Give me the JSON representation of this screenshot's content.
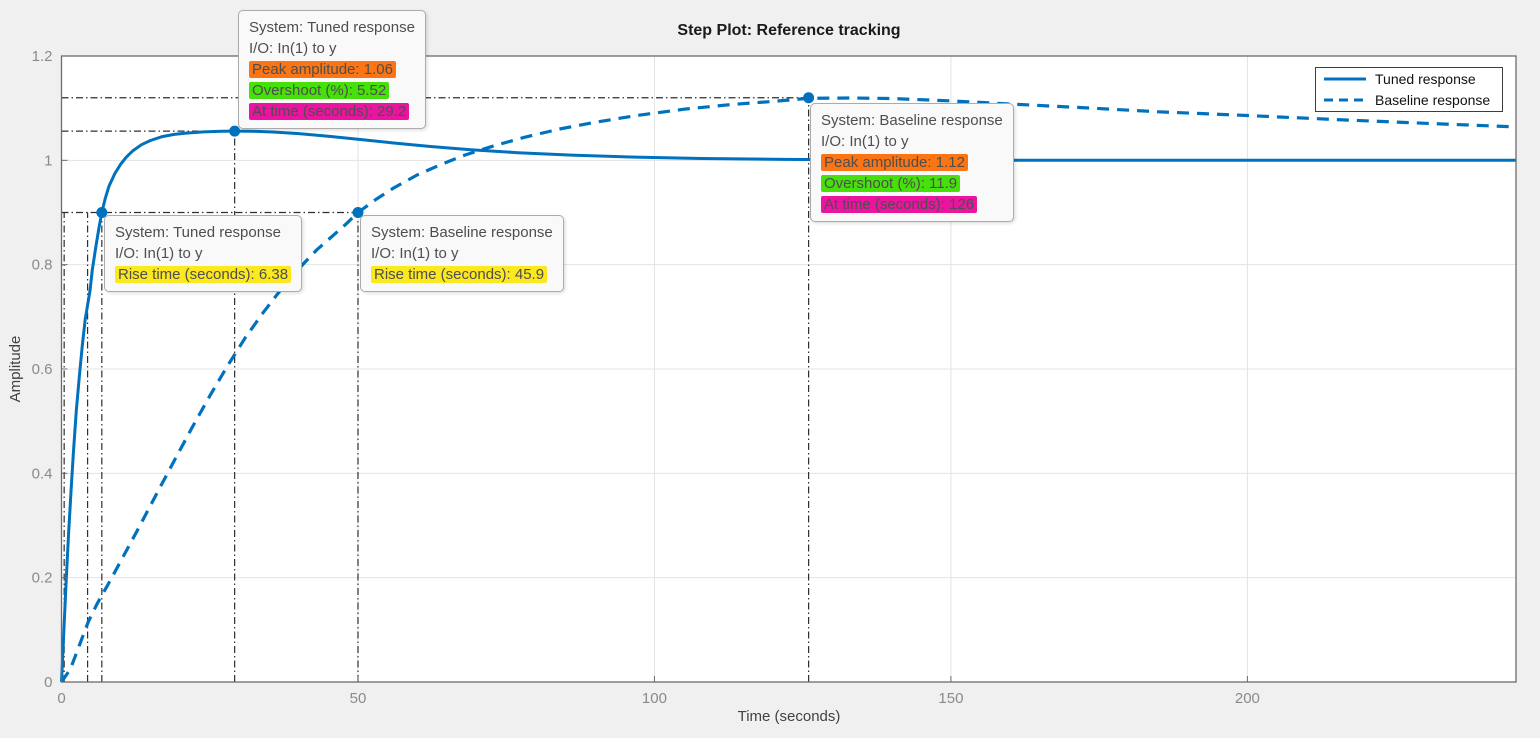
{
  "figure": {
    "background": "#f0f0f0",
    "plot_background": "#ffffff",
    "axis_color": "#6b6b6b",
    "grid_color": "#e3e3e3",
    "tick_label_color": "#8a8a8a",
    "label_color": "#424242",
    "title_color": "#1a1a1a",
    "guide_color": "#2f2f2f",
    "accent": "#0072BD"
  },
  "legend": {
    "items": [
      {
        "label": "Tuned response",
        "line": "solid"
      },
      {
        "label": "Baseline response",
        "line": "dashed"
      }
    ]
  },
  "tooltips": [
    {
      "name": "tuned-peak-datatip",
      "lines": [
        "System: Tuned response",
        "I/O: In(1) to y"
      ],
      "rows": [
        {
          "label": "Peak amplitude: 1.06",
          "highlight": "#fb7514"
        },
        {
          "label": "Overshoot (%): 5.52",
          "highlight": "#46e00a"
        },
        {
          "label": "At time (seconds): 29.2",
          "highlight": "#ea14a0"
        }
      ]
    },
    {
      "name": "tuned-rise-datatip",
      "lines": [
        "System: Tuned response",
        "I/O: In(1) to y"
      ],
      "rows": [
        {
          "label": "Rise time (seconds): 6.38",
          "highlight": "#fbe81f"
        }
      ]
    },
    {
      "name": "baseline-rise-datatip",
      "lines": [
        "System: Baseline response",
        "I/O: In(1) to y"
      ],
      "rows": [
        {
          "label": "Rise time (seconds): 45.9",
          "highlight": "#fbe81f"
        }
      ]
    },
    {
      "name": "baseline-peak-datatip",
      "lines": [
        "System: Baseline response",
        "I/O: In(1) to y"
      ],
      "rows": [
        {
          "label": "Peak amplitude: 1.12",
          "highlight": "#fb7514"
        },
        {
          "label": "Overshoot (%): 11.9",
          "highlight": "#46e00a"
        },
        {
          "label": "At time (seconds): 126",
          "highlight": "#ea14a0"
        }
      ]
    }
  ],
  "chart_data": {
    "type": "line",
    "title": "Step Plot: Reference tracking",
    "xlabel": "Time (seconds)",
    "ylabel": "Amplitude",
    "xlim": [
      0,
      245.3
    ],
    "ylim": [
      0,
      1.2
    ],
    "x_ticks": [
      0,
      50,
      100,
      150,
      200
    ],
    "y_ticks": [
      0,
      0.2,
      0.4,
      0.6,
      0.8,
      1,
      1.2
    ],
    "grid": true,
    "legend_position": "northeast",
    "series": [
      {
        "name": "Tuned response",
        "style": "solid",
        "color": "#0072BD",
        "points": [
          [
            0,
            0
          ],
          [
            0.4,
            0.1
          ],
          [
            0.8,
            0.195
          ],
          [
            1.2,
            0.285
          ],
          [
            1.6,
            0.365
          ],
          [
            2,
            0.44
          ],
          [
            2.5,
            0.52
          ],
          [
            3,
            0.585
          ],
          [
            3.5,
            0.645
          ],
          [
            4,
            0.695
          ],
          [
            4.8,
            0.75
          ],
          [
            5.2,
            0.79
          ],
          [
            5.8,
            0.835
          ],
          [
            6.3,
            0.87
          ],
          [
            6.8,
            0.9
          ],
          [
            7.4,
            0.928
          ],
          [
            8,
            0.95
          ],
          [
            9,
            0.975
          ],
          [
            10,
            0.993
          ],
          [
            11,
            1.007
          ],
          [
            12,
            1.018
          ],
          [
            13.5,
            1.03
          ],
          [
            15,
            1.038
          ],
          [
            17,
            1.0455
          ],
          [
            19,
            1.0497
          ],
          [
            21,
            1.0522
          ],
          [
            24,
            1.0545
          ],
          [
            27,
            1.0557
          ],
          [
            29.2,
            1.056
          ],
          [
            32,
            1.0558
          ],
          [
            36,
            1.0542
          ],
          [
            40,
            1.0512
          ],
          [
            45,
            1.0462
          ],
          [
            50,
            1.0405
          ],
          [
            56,
            1.0333
          ],
          [
            62,
            1.0268
          ],
          [
            69,
            1.0204
          ],
          [
            77,
            1.0147
          ],
          [
            86,
            1.01
          ],
          [
            96,
            1.0064
          ],
          [
            108,
            1.0036
          ],
          [
            122,
            1.0017
          ],
          [
            138,
            1.0006
          ],
          [
            155,
            1.0001
          ],
          [
            175,
            1
          ],
          [
            200,
            1
          ],
          [
            222,
            1
          ],
          [
            245.3,
            1
          ]
        ]
      },
      {
        "name": "Baseline response",
        "style": "dashed",
        "color": "#0072BD",
        "points": [
          [
            0,
            0
          ],
          [
            1.5,
            0.025
          ],
          [
            3,
            0.07
          ],
          [
            4.5,
            0.115
          ],
          [
            6,
            0.15
          ],
          [
            8,
            0.19
          ],
          [
            10,
            0.232
          ],
          [
            13,
            0.295
          ],
          [
            16,
            0.36
          ],
          [
            19,
            0.424
          ],
          [
            22,
            0.487
          ],
          [
            25,
            0.548
          ],
          [
            28,
            0.606
          ],
          [
            31,
            0.66
          ],
          [
            34,
            0.708
          ],
          [
            37,
            0.752
          ],
          [
            40,
            0.792
          ],
          [
            43,
            0.828
          ],
          [
            46,
            0.858
          ],
          [
            48,
            0.878
          ],
          [
            50,
            0.9
          ],
          [
            53,
            0.925
          ],
          [
            56,
            0.947
          ],
          [
            60,
            0.972
          ],
          [
            64,
            0.992
          ],
          [
            68,
            1.01
          ],
          [
            73,
            1.028
          ],
          [
            78,
            1.044
          ],
          [
            84,
            1.06
          ],
          [
            90,
            1.073
          ],
          [
            97,
            1.086
          ],
          [
            105,
            1.098
          ],
          [
            113,
            1.107
          ],
          [
            120,
            1.113
          ],
          [
            126,
            1.119
          ],
          [
            133,
            1.1195
          ],
          [
            140,
            1.1185
          ],
          [
            150,
            1.114
          ],
          [
            160,
            1.108
          ],
          [
            172,
            1.101
          ],
          [
            185,
            1.093
          ],
          [
            200,
            1.086
          ],
          [
            215,
            1.078
          ],
          [
            230,
            1.071
          ],
          [
            245.3,
            1.064
          ]
        ]
      }
    ],
    "characteristics": [
      {
        "system": "Tuned response",
        "metric": "Rise time (seconds)",
        "value": 6.38
      },
      {
        "system": "Tuned response",
        "metric": "Peak amplitude",
        "value": 1.06,
        "overshoot_pct": 5.52,
        "at_time_seconds": 29.2
      },
      {
        "system": "Baseline response",
        "metric": "Rise time (seconds)",
        "value": 45.9
      },
      {
        "system": "Baseline response",
        "metric": "Peak amplitude",
        "value": 1.12,
        "overshoot_pct": 11.9,
        "at_time_seconds": 126
      }
    ],
    "marker_points": [
      [
        6.8,
        0.9
      ],
      [
        29.2,
        1.056
      ],
      [
        50,
        0.9
      ],
      [
        126,
        1.12
      ]
    ],
    "guides": {
      "hlines": [
        {
          "y": 0.9,
          "x1": 0,
          "x2": 50
        },
        {
          "y": 1.056,
          "x1": 0,
          "x2": 29.2
        },
        {
          "y": 1.12,
          "x1": 0,
          "x2": 126
        }
      ],
      "vlines": [
        {
          "x": 0.45,
          "y1": 0,
          "y2": 0.9
        },
        {
          "x": 4.4,
          "y1": 0,
          "y2": 0.9
        },
        {
          "x": 6.8,
          "y1": 0,
          "y2": 0.9
        },
        {
          "x": 29.2,
          "y1": 0,
          "y2": 1.056
        },
        {
          "x": 50,
          "y1": 0,
          "y2": 0.9
        },
        {
          "x": 126,
          "y1": 0,
          "y2": 1.12
        }
      ]
    }
  }
}
